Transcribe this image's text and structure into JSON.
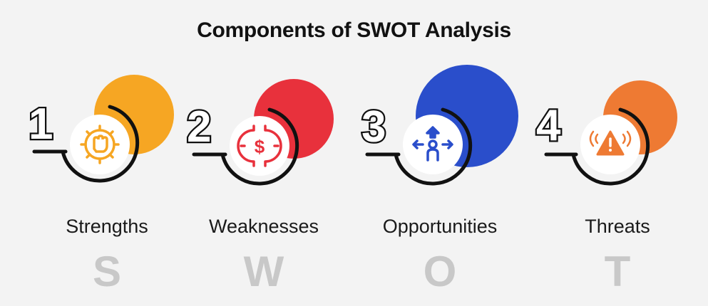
{
  "title": "Components of SWOT Analysis",
  "items": [
    {
      "number": "1",
      "label": "Strengths",
      "letter": "S",
      "color": "#f6a623",
      "icon": "fist-gear-icon"
    },
    {
      "number": "2",
      "label": "Weaknesses",
      "letter": "W",
      "color": "#e8313c",
      "icon": "broken-gear-dollar-icon"
    },
    {
      "number": "3",
      "label": "Opportunities",
      "letter": "O",
      "color": "#2a4ecb",
      "icon": "person-arrows-icon"
    },
    {
      "number": "4",
      "label": "Threats",
      "letter": "T",
      "color": "#ee7a33",
      "icon": "warning-alarm-icon"
    }
  ]
}
